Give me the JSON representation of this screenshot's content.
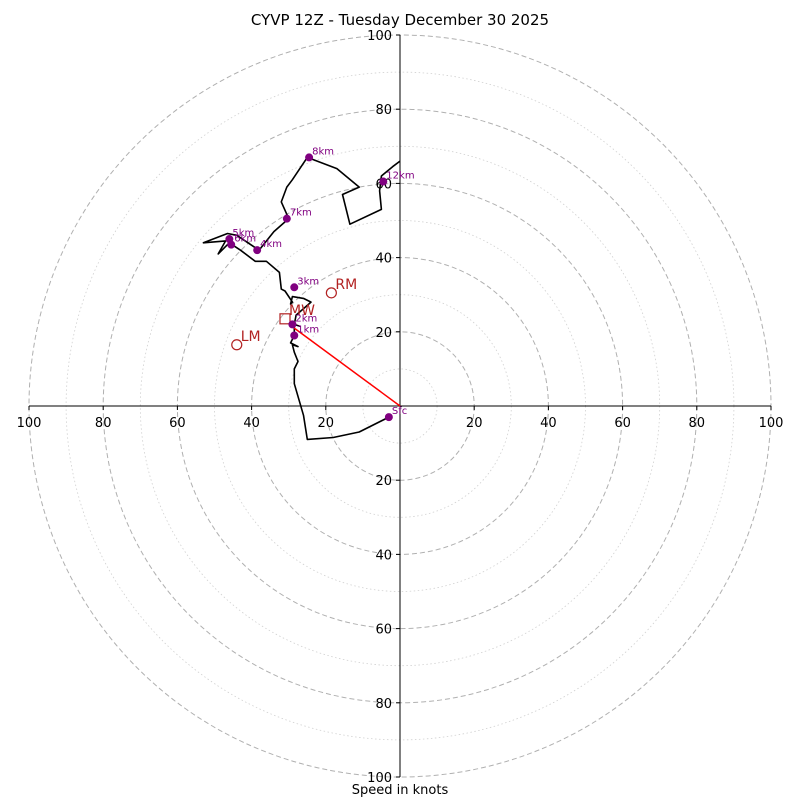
{
  "chart_data": {
    "type": "hodograph",
    "title": "CYVP 12Z - Tuesday December 30 2025",
    "xlabel": "Speed in knots",
    "ylabel": "",
    "xlim": [
      -100,
      100
    ],
    "ylim": [
      -100,
      100
    ],
    "rings": [
      10,
      20,
      30,
      40,
      50,
      60,
      70,
      80,
      90,
      100
    ],
    "tick_values": [
      20,
      40,
      60,
      80,
      100
    ],
    "x_tick_labels": [
      "100",
      "80",
      "60",
      "40",
      "20",
      "20",
      "40",
      "60",
      "80",
      "100"
    ],
    "y_tick_labels_upper": [
      "20",
      "40",
      "60",
      "80",
      "100"
    ],
    "y_tick_labels_lower": [
      "20",
      "40",
      "60",
      "80",
      "100"
    ],
    "grid": true,
    "hodograph_trace": [
      [
        -3,
        -3
      ],
      [
        -11,
        -7
      ],
      [
        -18,
        -8.5
      ],
      [
        -25,
        -9
      ],
      [
        -26,
        -2.5
      ],
      [
        -28.5,
        6
      ],
      [
        -28.5,
        10
      ],
      [
        -27.5,
        12
      ],
      [
        -28.5,
        14.5
      ],
      [
        -29,
        16.5
      ],
      [
        -27.5,
        16
      ],
      [
        -29.5,
        17
      ],
      [
        -28.5,
        19
      ],
      [
        -28.5,
        22
      ],
      [
        -27,
        21.5
      ],
      [
        -28.5,
        22
      ],
      [
        -28,
        24.5
      ],
      [
        -24,
        28
      ],
      [
        -26,
        29
      ],
      [
        -29,
        29.5
      ],
      [
        -29.5,
        27.5
      ],
      [
        -29,
        28
      ],
      [
        -31,
        31
      ],
      [
        -32,
        31.5
      ],
      [
        -32.5,
        36
      ],
      [
        -36,
        39
      ],
      [
        -39,
        39
      ],
      [
        -43,
        42
      ],
      [
        -46,
        44
      ],
      [
        -49,
        41
      ],
      [
        -47,
        44.5
      ],
      [
        -53,
        44
      ],
      [
        -46.5,
        46.5
      ],
      [
        -44,
        46
      ],
      [
        -38,
        42
      ],
      [
        -34,
        47
      ],
      [
        -30,
        50.5
      ],
      [
        -32,
        55
      ],
      [
        -30.5,
        59
      ],
      [
        -29,
        61
      ],
      [
        -25,
        67
      ],
      [
        -17,
        64
      ],
      [
        -11,
        59
      ],
      [
        -15.5,
        57
      ],
      [
        -13.5,
        49
      ],
      [
        -5,
        53
      ],
      [
        -5.5,
        58
      ],
      [
        -5,
        62
      ],
      [
        -2,
        64.5
      ],
      [
        0,
        66
      ]
    ],
    "height_markers": [
      {
        "label": "Sfc",
        "u": -3,
        "v": -3
      },
      {
        "label": "1km",
        "u": -28.5,
        "v": 19
      },
      {
        "label": "2km",
        "u": -29,
        "v": 22
      },
      {
        "label": "3km",
        "u": -28.5,
        "v": 32
      },
      {
        "label": "4km",
        "u": -38.5,
        "v": 42
      },
      {
        "label": "5km",
        "u": -46,
        "v": 45
      },
      {
        "label": "6km",
        "u": -45.5,
        "v": 43.5
      },
      {
        "label": "7km",
        "u": -30.5,
        "v": 50.5
      },
      {
        "label": "8km",
        "u": -24.5,
        "v": 67
      },
      {
        "label": "12km",
        "u": -4.5,
        "v": 60.5
      }
    ],
    "storm_motion": [
      {
        "label": "RM",
        "u": -18.5,
        "v": 30.5,
        "marker": "circle"
      },
      {
        "label": "LM",
        "u": -44,
        "v": 16.5,
        "marker": "circle"
      },
      {
        "label": "MW",
        "u": -31,
        "v": 23.5,
        "marker": "square"
      }
    ],
    "motion_vector": {
      "from": [
        0,
        0
      ],
      "to": [
        -28.5,
        21
      ]
    },
    "colors": {
      "trace": "#000000",
      "height_marker": "#800080",
      "storm_motion": "#b22222",
      "motion_vector": "#ff0000",
      "grid": "#b0b0b0"
    }
  }
}
